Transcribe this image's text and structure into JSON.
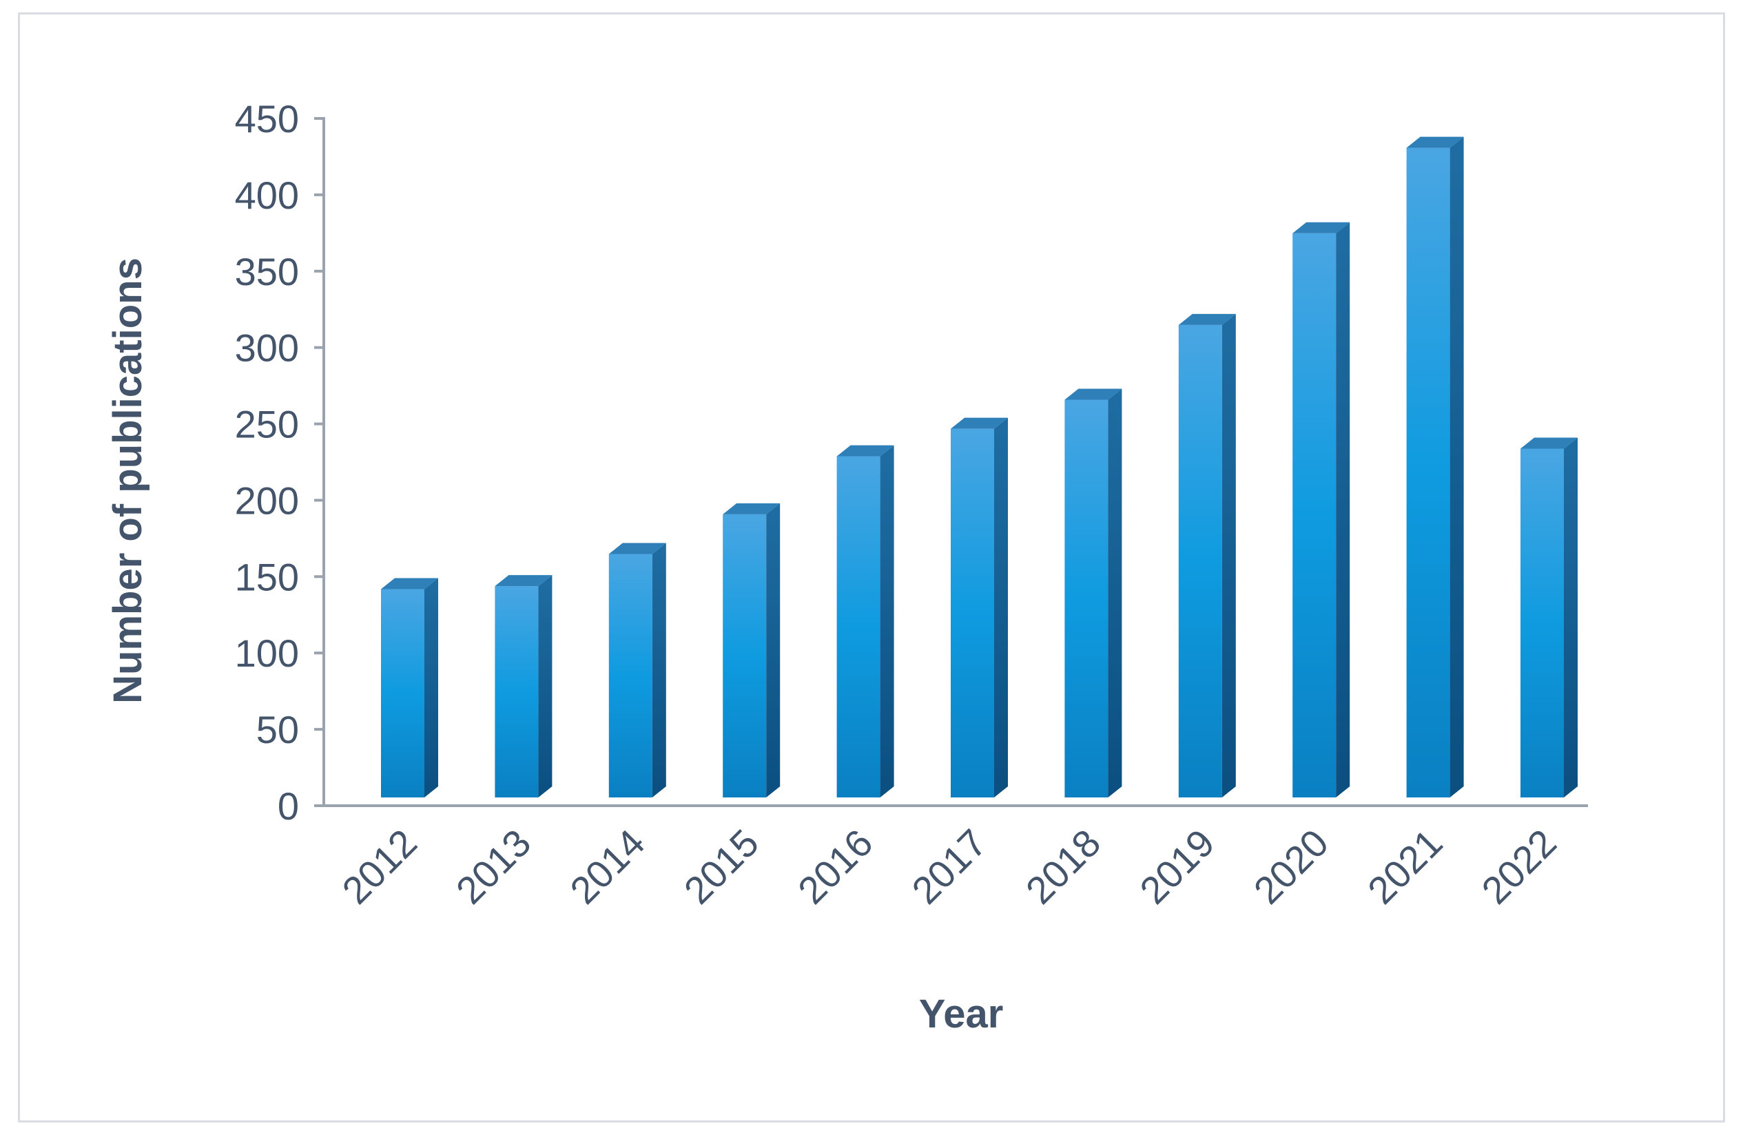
{
  "chart_data": {
    "type": "bar",
    "style": "3d-column",
    "categories": [
      "2012",
      "2013",
      "2014",
      "2015",
      "2016",
      "2017",
      "2018",
      "2019",
      "2020",
      "2021",
      "2022"
    ],
    "values": [
      140,
      142,
      163,
      189,
      227,
      245,
      264,
      313,
      373,
      429,
      232
    ],
    "xlabel": "Year",
    "ylabel": "Number of publications",
    "ylim": [
      0,
      450
    ],
    "yticks": [
      "0",
      "50",
      "100",
      "150",
      "200",
      "250",
      "300",
      "350",
      "400",
      "450"
    ],
    "grid": false,
    "legend": "none",
    "colors": {
      "bar_front_top": "#4aa6e2",
      "bar_front_mid": "#0f9be0",
      "bar_front_bottom": "#0a7fc0",
      "bar_side": "#0d5a8e",
      "bar_top": "#2f7fb8",
      "axis": "#9aa3ad",
      "text": "#44546a"
    }
  }
}
